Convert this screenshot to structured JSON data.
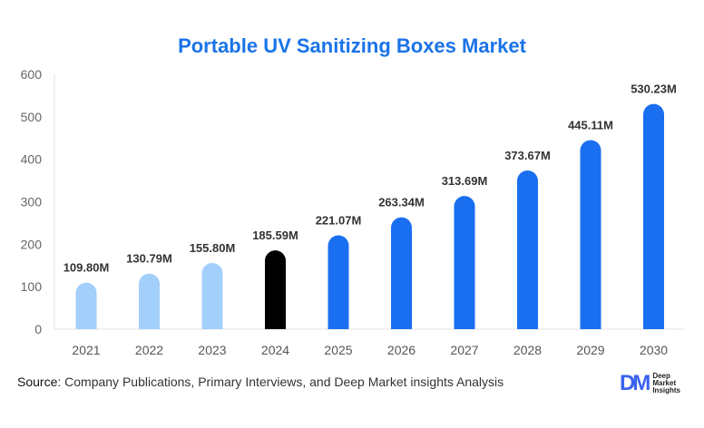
{
  "chart_data": {
    "type": "bar",
    "title": "Portable UV Sanitizing Boxes Market",
    "categories": [
      "2021",
      "2022",
      "2023",
      "2024",
      "2025",
      "2026",
      "2027",
      "2028",
      "2029",
      "2030"
    ],
    "values": [
      109.8,
      130.79,
      155.8,
      185.59,
      221.07,
      263.34,
      313.69,
      373.67,
      445.11,
      530.23
    ],
    "data_labels": [
      "109.80M",
      "130.79M",
      "155.80M",
      "185.59M",
      "221.07M",
      "263.34M",
      "313.69M",
      "373.67M",
      "445.11M",
      "530.23M"
    ],
    "bar_colors": [
      "#a3cffb",
      "#a3cffb",
      "#a3cffb",
      "#000000",
      "#1a6ff0",
      "#1a6ff0",
      "#1a6ff0",
      "#1a6ff0",
      "#1a6ff0",
      "#1a6ff0"
    ],
    "yticks": [
      "0",
      "100",
      "200",
      "300",
      "400",
      "500",
      "600"
    ],
    "ylim": [
      0,
      600
    ],
    "xlabel": "",
    "ylabel": "",
    "grid": false,
    "legend": "none"
  },
  "footer": {
    "source_label": "Source",
    "source_text": ": Company Publications, Primary Interviews, and Deep Market insights Analysis"
  },
  "logo": {
    "mark": "DM",
    "line1": "Deep",
    "line2": "Market",
    "line3": "Insights"
  }
}
